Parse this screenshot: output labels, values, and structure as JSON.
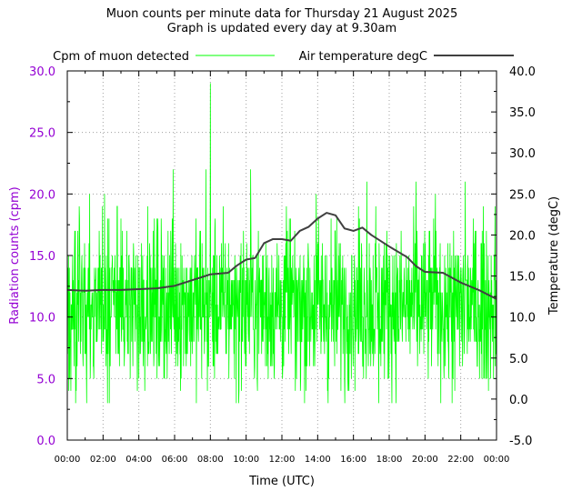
{
  "chart_data": {
    "type": "line",
    "title": "Muon counts per minute data for Thursday 21 August 2025",
    "subtitle": "Graph is updated every day at 9.30am",
    "xlabel": "Time (UTC)",
    "ylabel_left": "Radiation counts (cpm)",
    "ylabel_right": "Temperature (degC)",
    "x_ticks": [
      "00:00",
      "02:00",
      "04:00",
      "06:00",
      "08:00",
      "10:00",
      "12:00",
      "14:00",
      "16:00",
      "18:00",
      "20:00",
      "22:00",
      "00:00"
    ],
    "y_left_ticks": [
      "0.0",
      "5.0",
      "10.0",
      "15.0",
      "20.0",
      "25.0",
      "30.0"
    ],
    "y_right_ticks": [
      "-5.0",
      "0.0",
      "5.0",
      "10.0",
      "15.0",
      "20.0",
      "25.0",
      "30.0",
      "35.0",
      "40.0"
    ],
    "ylim_left": [
      0,
      30
    ],
    "ylim_right": [
      -5,
      40
    ],
    "xlim_hours": [
      0,
      24
    ],
    "grid": true,
    "legend_position": "top",
    "colors": {
      "muon": "#00ff00",
      "temperature": "#404040",
      "left_axis": "#9400d3",
      "grid": "#a0a0a0"
    },
    "series": [
      {
        "name": "Cpm of muon detected",
        "axis": "left",
        "note_distribution": "per-minute counts fluctuating mostly between 3 and 19 with mean ~11",
        "spikes": [
          {
            "time": "08:00",
            "value": 29
          },
          {
            "time": "05:55",
            "value": 22
          },
          {
            "time": "07:45",
            "value": 22
          },
          {
            "time": "10:15",
            "value": 22
          },
          {
            "time": "16:45",
            "value": 21
          },
          {
            "time": "19:30",
            "value": 21
          },
          {
            "time": "22:15",
            "value": 21
          },
          {
            "time": "01:15",
            "value": 20
          },
          {
            "time": "02:05",
            "value": 20
          },
          {
            "time": "13:55",
            "value": 20
          },
          {
            "time": "20:35",
            "value": 20
          },
          {
            "time": "00:40",
            "value": 19
          },
          {
            "time": "04:30",
            "value": 19
          },
          {
            "time": "09:35",
            "value": 19
          },
          {
            "time": "12:15",
            "value": 19
          },
          {
            "time": "17:15",
            "value": 19
          },
          {
            "time": "23:55",
            "value": 19
          }
        ],
        "dips": [
          {
            "time": "01:05",
            "value": 3
          },
          {
            "time": "02:15",
            "value": 3
          },
          {
            "time": "09:35",
            "value": 3
          },
          {
            "time": "14:35",
            "value": 3
          },
          {
            "time": "17:25",
            "value": 3
          },
          {
            "time": "03:55",
            "value": 4
          },
          {
            "time": "07:50",
            "value": 4
          },
          {
            "time": "12:45",
            "value": 4
          },
          {
            "time": "21:40",
            "value": 4
          }
        ]
      },
      {
        "name": "Air temperature degC",
        "axis": "right",
        "x": [
          "00:00",
          "01:00",
          "02:00",
          "03:00",
          "04:00",
          "05:00",
          "06:00",
          "07:00",
          "08:00",
          "09:00",
          "09:30",
          "10:00",
          "10:30",
          "11:00",
          "11:30",
          "12:00",
          "12:30",
          "13:00",
          "13:30",
          "14:00",
          "14:30",
          "15:00",
          "15:30",
          "16:00",
          "16:30",
          "17:00",
          "18:00",
          "19:00",
          "19:30",
          "20:00",
          "21:00",
          "22:00",
          "23:00",
          "00:00"
        ],
        "values": [
          13.3,
          13.2,
          13.3,
          13.3,
          13.4,
          13.5,
          13.8,
          14.5,
          15.2,
          15.4,
          16.3,
          17.0,
          17.2,
          19.0,
          19.5,
          19.5,
          19.3,
          20.5,
          21.0,
          22.0,
          22.7,
          22.4,
          20.8,
          20.5,
          20.9,
          20.0,
          18.6,
          17.3,
          16.2,
          15.5,
          15.4,
          14.2,
          13.3,
          12.2
        ]
      }
    ]
  }
}
